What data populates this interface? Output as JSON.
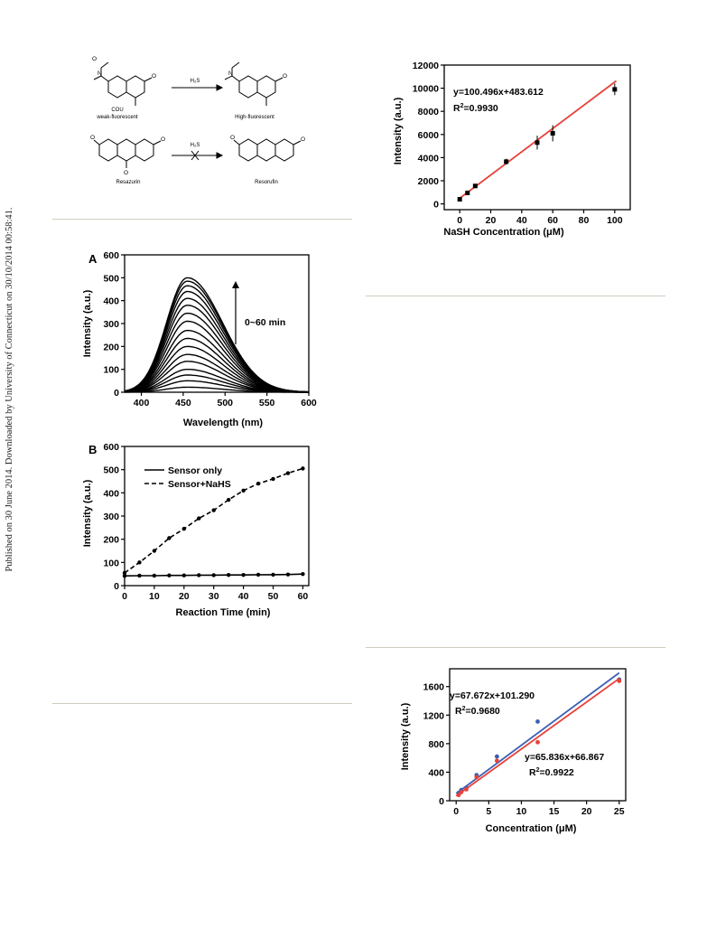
{
  "margin_note": "Published on 30 June 2014. Downloaded by University of Connecticut on 30/10/2014 00:58:41.",
  "scheme": {
    "cou_label": "COU",
    "cou_sub": "weak-fluorescent",
    "h2s_1": "H₂S",
    "product1": "High-fluorescent",
    "resazurin": "Resazurin",
    "h2s_2": "H₂S",
    "resorufin": "Resorufin"
  },
  "colors": {
    "rule": "#cfcbbd",
    "red_line": "#e8413a",
    "blue_line": "#3a5fb5",
    "black": "#000000"
  },
  "chart_data": [
    {
      "id": "calibration_nash",
      "type": "scatter",
      "xlabel": "NaSH Concentration (μM)",
      "ylabel": "Intensity (a.u.)",
      "xlim": [
        -10,
        110
      ],
      "ylim": [
        -500,
        12000
      ],
      "xticks": [
        0,
        20,
        40,
        60,
        80,
        100
      ],
      "yticks": [
        0,
        2000,
        4000,
        6000,
        8000,
        10000,
        12000
      ],
      "points": [
        {
          "x": 0,
          "y": 400,
          "err": 120
        },
        {
          "x": 5,
          "y": 950,
          "err": 100
        },
        {
          "x": 10,
          "y": 1550,
          "err": 120
        },
        {
          "x": 30,
          "y": 3650,
          "err": 250
        },
        {
          "x": 50,
          "y": 5300,
          "err": 600
        },
        {
          "x": 60,
          "y": 6100,
          "err": 700
        },
        {
          "x": 100,
          "y": 9900,
          "err": 500
        }
      ],
      "fit": {
        "slope": 100.496,
        "intercept": 483.612,
        "x_range": [
          0,
          100
        ]
      },
      "equation": "y=100.496x+483.612",
      "r2_prefix": "R",
      "r2_sup": "2",
      "r2_value": "=0.9930"
    },
    {
      "id": "panel_A",
      "type": "line",
      "panel_label": "A",
      "xlabel": "Wavelength (nm)",
      "ylabel": "Intensity (a.u.)",
      "xlim": [
        380,
        600
      ],
      "ylim": [
        0,
        600
      ],
      "xticks": [
        400,
        450,
        500,
        550,
        600
      ],
      "yticks": [
        0,
        100,
        200,
        300,
        400,
        500,
        600
      ],
      "peak_x": 455,
      "peak_values": [
        22,
        50,
        75,
        100,
        135,
        165,
        200,
        235,
        270,
        310,
        345,
        380,
        410,
        440,
        465,
        485,
        500
      ],
      "annotation": "0~60 min"
    },
    {
      "id": "panel_B",
      "type": "line",
      "panel_label": "B",
      "xlabel": "Reaction Time (min)",
      "ylabel": "Intensity  (a.u.)",
      "xlim": [
        0,
        62
      ],
      "ylim": [
        0,
        600
      ],
      "xticks": [
        0,
        10,
        20,
        30,
        40,
        50,
        60
      ],
      "yticks": [
        0,
        100,
        200,
        300,
        400,
        500,
        600
      ],
      "series": [
        {
          "name": "Sensor only",
          "style": "solid",
          "x": [
            0,
            5,
            10,
            15,
            20,
            25,
            30,
            35,
            40,
            45,
            50,
            55,
            60
          ],
          "y": [
            42,
            43,
            43,
            44,
            44,
            45,
            45,
            46,
            46,
            47,
            47,
            48,
            50
          ]
        },
        {
          "name": "Sensor+NaHS",
          "style": "dashed",
          "x": [
            0,
            5,
            10,
            15,
            20,
            25,
            30,
            35,
            40,
            45,
            50,
            55,
            60
          ],
          "y": [
            55,
            100,
            150,
            205,
            245,
            290,
            325,
            370,
            410,
            440,
            460,
            485,
            505
          ]
        }
      ]
    },
    {
      "id": "concentration_two_fits",
      "type": "scatter",
      "xlabel": "Concentration (μM)",
      "ylabel": "Intensity (a.u.)",
      "xlim": [
        -1,
        26
      ],
      "ylim": [
        0,
        1850
      ],
      "xticks": [
        0,
        5,
        10,
        15,
        20,
        25
      ],
      "yticks": [
        0,
        400,
        800,
        1200,
        1600
      ],
      "series": [
        {
          "name": "blue",
          "color": "#3a5fb5",
          "x": [
            0.39,
            0.78,
            1.56,
            3.13,
            6.25,
            12.5,
            25
          ],
          "y": [
            110,
            150,
            180,
            360,
            620,
            1110,
            1700
          ],
          "fit": {
            "slope": 67.672,
            "intercept": 101.29
          }
        },
        {
          "name": "red",
          "color": "#e8413a",
          "x": [
            0.39,
            0.78,
            1.56,
            3.13,
            6.25,
            12.5,
            25
          ],
          "y": [
            80,
            120,
            160,
            330,
            560,
            820,
            1680
          ],
          "fit": {
            "slope": 65.836,
            "intercept": 66.867
          }
        }
      ],
      "eq1": "y=67.672x+101.290",
      "r2_1_value": "=0.9680",
      "eq2": "y=65.836x+66.867",
      "r2_2_value": "=0.9922",
      "r2_prefix": "R",
      "r2_sup": "2"
    }
  ]
}
